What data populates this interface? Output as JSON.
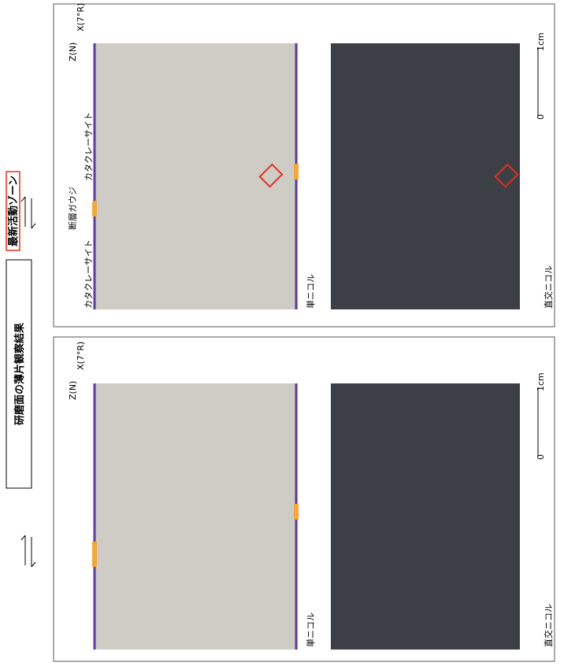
{
  "title": "研磨面の薄片観察結果",
  "zone_label": "最新活動ゾーン",
  "panels": [
    {
      "single_nicol": "単ニコル",
      "crossed_nicol": "直交ニコル",
      "axis_z": "Z(N)",
      "axis_x": "X(7°R)",
      "scale_zero": "0",
      "scale_unit": "1cm"
    },
    {
      "single_nicol": "単ニコル",
      "crossed_nicol": "直交ニコル",
      "axis_z": "Z(N)",
      "axis_x": "X(7°R)",
      "scale_zero": "0",
      "scale_unit": "1cm",
      "cataclasite_left": "カタクレーサイト",
      "fault_gouge": "断層ガウジ",
      "cataclasite_right": "カタクレーサイト"
    }
  ]
}
